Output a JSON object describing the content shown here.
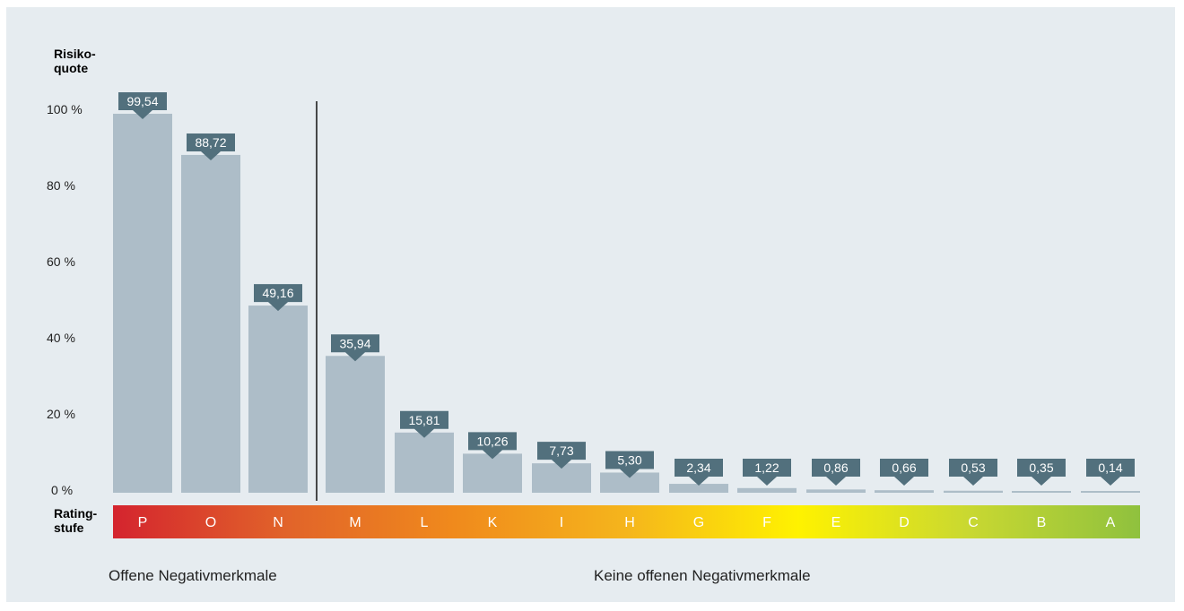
{
  "chart_data": {
    "type": "bar",
    "ylabel": "Risiko-\nquote",
    "xlabel": "Rating-\nstufe",
    "ylim": [
      0,
      100
    ],
    "yticks": [
      "0 %",
      "20 %",
      "40 %",
      "60 %",
      "80 %",
      "100 %"
    ],
    "categories": [
      "P",
      "O",
      "N",
      "M",
      "L",
      "K",
      "I",
      "H",
      "G",
      "F",
      "E",
      "D",
      "C",
      "B",
      "A"
    ],
    "values": [
      99.54,
      88.72,
      49.16,
      35.94,
      15.81,
      10.26,
      7.73,
      5.3,
      2.34,
      1.22,
      0.86,
      0.66,
      0.53,
      0.35,
      0.14
    ],
    "value_labels": [
      "99,54",
      "88,72",
      "49,16",
      "35,94",
      "15,81",
      "10,26",
      "7,73",
      "5,30",
      "2,34",
      "1,22",
      "0,86",
      "0,66",
      "0,53",
      "0,35",
      "0,14"
    ],
    "groups": [
      {
        "label": "Offene Negativmerkmale"
      },
      {
        "label": "Keine offenen Negativmerkmale"
      }
    ],
    "colors": {
      "bar": "#adbdc8",
      "marker": "#52707d",
      "panel": "#e6ecf0",
      "gradient": [
        "#d4242e",
        "#e1632a",
        "#f08a1c",
        "#f5b51c",
        "#fff200",
        "#c9d831",
        "#8fc13e"
      ]
    }
  }
}
